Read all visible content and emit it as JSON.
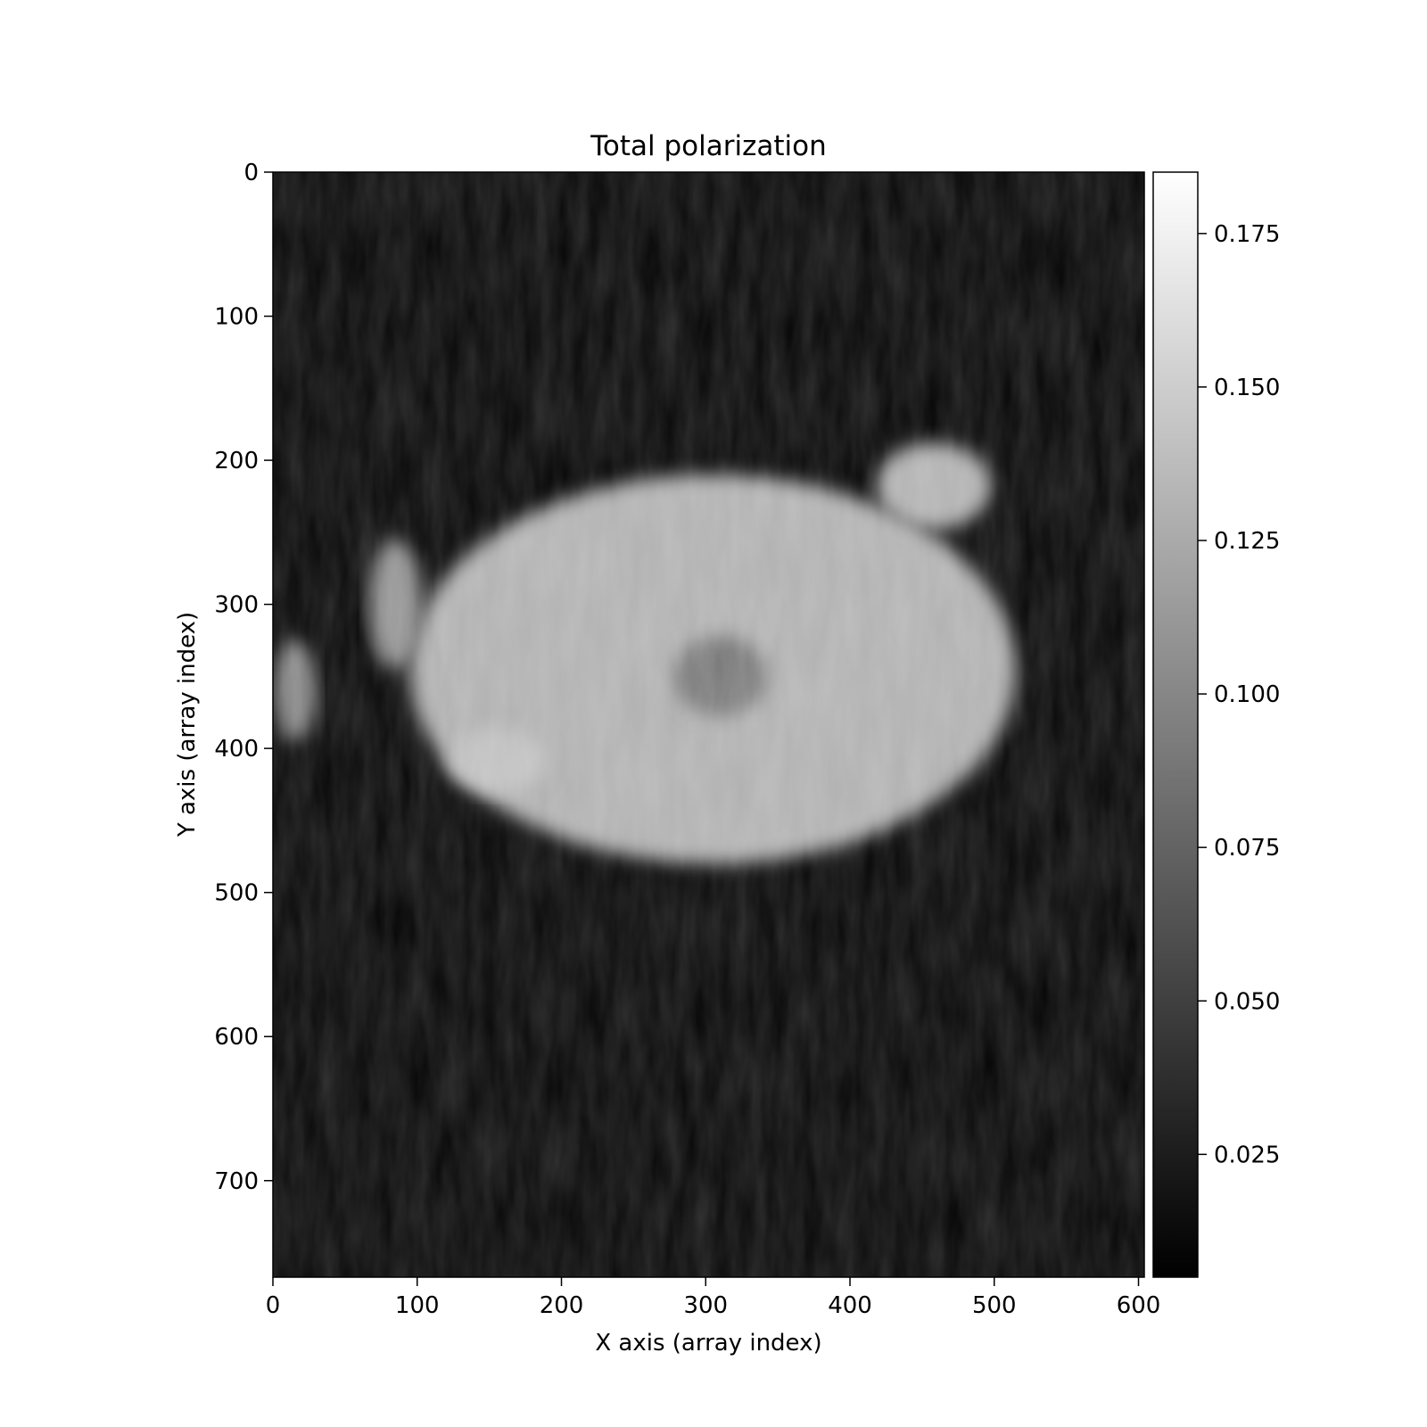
{
  "chart_data": {
    "type": "heatmap",
    "title": "Total polarization",
    "xlabel": "X axis (array index)",
    "ylabel": "Y axis (array index)",
    "xlim": [
      0,
      604
    ],
    "ylim": [
      767,
      0
    ],
    "x_ticks": [
      0,
      100,
      200,
      300,
      400,
      500,
      600
    ],
    "y_ticks": [
      0,
      100,
      200,
      300,
      400,
      500,
      600,
      700
    ],
    "y_inverted": true,
    "grid": false,
    "colormap": "gray",
    "colorbar": {
      "range": [
        0.005,
        0.185
      ],
      "ticks": [
        0.025,
        0.05,
        0.075,
        0.1,
        0.125,
        0.15,
        0.175
      ],
      "tick_labels": [
        "0.025",
        "0.050",
        "0.075",
        "0.100",
        "0.125",
        "0.150",
        "0.175"
      ],
      "location": "right"
    },
    "features": [
      {
        "kind": "penumbra",
        "center": [
          305,
          345
        ],
        "radii": [
          210,
          135
        ],
        "value": 0.13
      },
      {
        "kind": "umbra",
        "center": [
          310,
          350
        ],
        "radii": [
          32,
          28
        ],
        "value": 0.09
      },
      {
        "kind": "pore",
        "center": [
          458,
          218
        ],
        "radii": [
          40,
          30
        ],
        "value": 0.13
      },
      {
        "kind": "pore",
        "center": [
          155,
          408
        ],
        "radii": [
          35,
          22
        ],
        "value": 0.14
      },
      {
        "kind": "plage",
        "center": [
          85,
          300
        ],
        "radii": [
          18,
          45
        ],
        "value": 0.11
      },
      {
        "kind": "plage",
        "center": [
          15,
          360
        ],
        "radii": [
          15,
          35
        ],
        "value": 0.1
      }
    ],
    "background_value": 0.01
  },
  "colors": {
    "background": "#ffffff",
    "axes": "#000000",
    "image_min": "#000000",
    "image_max": "#ffffff"
  }
}
